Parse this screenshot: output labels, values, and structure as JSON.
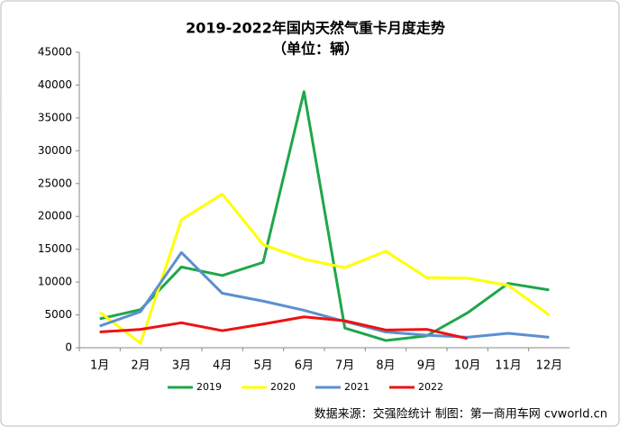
{
  "chart_data": {
    "type": "line",
    "title": "2019-2022年国内天然气重卡月度走势",
    "subtitle": "（单位：辆）",
    "categories": [
      "1月",
      "2月",
      "3月",
      "4月",
      "5月",
      "6月",
      "7月",
      "8月",
      "9月",
      "10月",
      "11月",
      "12月"
    ],
    "series": [
      {
        "name": "2019",
        "color": "#1fa64a",
        "values": [
          4400,
          5800,
          12300,
          11000,
          13000,
          39000,
          3000,
          1100,
          1800,
          5300,
          9800,
          8800
        ]
      },
      {
        "name": "2020",
        "color": "#ffff00",
        "values": [
          5400,
          700,
          19500,
          23400,
          15700,
          13500,
          12200,
          14700,
          10700,
          10600,
          9500,
          5000
        ]
      },
      {
        "name": "2021",
        "color": "#5b8fd0",
        "values": [
          3300,
          5500,
          14500,
          8300,
          7100,
          5700,
          4000,
          2400,
          1900,
          1600,
          2200,
          1600
        ]
      },
      {
        "name": "2022",
        "color": "#ee1111",
        "values": [
          2400,
          2800,
          3800,
          2600,
          3600,
          4700,
          4100,
          2700,
          2800,
          1400,
          null,
          null
        ]
      }
    ],
    "ylim": [
      0,
      45000
    ],
    "yticks": [
      0,
      5000,
      10000,
      15000,
      20000,
      25000,
      30000,
      35000,
      40000,
      45000
    ],
    "grid": false,
    "legend": "bottom",
    "source": "数据来源：交强险统计  制图：第一商用车网 cvworld.cn"
  }
}
